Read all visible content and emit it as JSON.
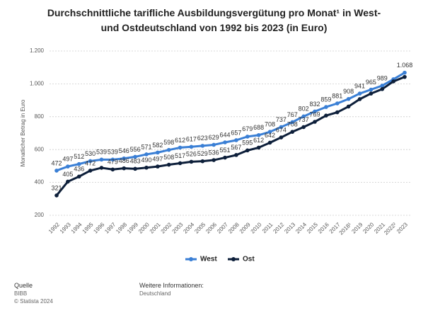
{
  "chart_data": {
    "type": "line",
    "title": "Durchschnittliche tarifliche Ausbildungsvergütung pro Monat¹ in West- und Ostdeutschland von 1992 bis 2023 (in Euro)",
    "y_label": "Monatlicher Betrag in Euro",
    "categories": [
      "1992",
      "1993",
      "1994",
      "1995",
      "1996",
      "1997",
      "1998",
      "1999",
      "2000",
      "2001",
      "2002",
      "2003",
      "2004",
      "2005",
      "2006",
      "2007",
      "2008",
      "2009",
      "2010",
      "2011",
      "2012",
      "2013",
      "2014",
      "2015",
      "2016",
      "2017",
      "2018¹",
      "2019",
      "2020",
      "2021",
      "2022²",
      "2023"
    ],
    "series": [
      {
        "name": "West",
        "color": "#3a7fd5",
        "values": [
          472,
          497,
          512,
          530,
          539,
          539,
          546,
          556,
          571,
          582,
          598,
          612,
          617,
          623,
          629,
          644,
          657,
          679,
          688,
          708,
          737,
          767,
          802,
          832,
          859,
          881,
          908,
          941,
          965,
          989,
          1028,
          1068
        ],
        "value_labels": [
          "472",
          "497",
          "512",
          "530",
          "539",
          "539",
          "546",
          "556",
          "571",
          "582",
          "598",
          "612",
          "617",
          "623",
          "629",
          "644",
          "657",
          "679",
          "688",
          "708",
          "737",
          "767",
          "802",
          "832",
          "859",
          "881",
          "908",
          "941",
          "965",
          "989",
          null,
          "1.068"
        ]
      },
      {
        "name": "Ost",
        "color": "#0d1f3a",
        "values": [
          321,
          405,
          436,
          472,
          489,
          479,
          486,
          483,
          490,
          497,
          508,
          517,
          526,
          529,
          536,
          551,
          567,
          595,
          612,
          642,
          674,
          708,
          737,
          769,
          807,
          827,
          862,
          907,
          941,
          968,
          1015,
          1042
        ],
        "value_labels": [
          "321",
          "405",
          "436",
          "472",
          null,
          "479",
          "486",
          "483",
          "490",
          "497",
          "508",
          "517",
          "526",
          "529",
          "536",
          "551",
          "567",
          "595",
          "612",
          "642",
          "674",
          "708",
          "737",
          "769",
          null,
          null,
          null,
          null,
          null,
          null,
          null,
          null
        ]
      }
    ],
    "ylim": [
      200,
      1200
    ],
    "yticks": [
      200,
      400,
      600,
      800,
      {
        "value": 1000,
        "label": "1.000"
      },
      {
        "value": 1200,
        "label": "1.200"
      }
    ],
    "grid": true,
    "legend": "bottom"
  },
  "footer": {
    "source_label": "Quelle",
    "source": "BIBB",
    "copyright": "© Statista 2024",
    "info_label": "Weitere Informationen:",
    "info": "Deutschland"
  }
}
